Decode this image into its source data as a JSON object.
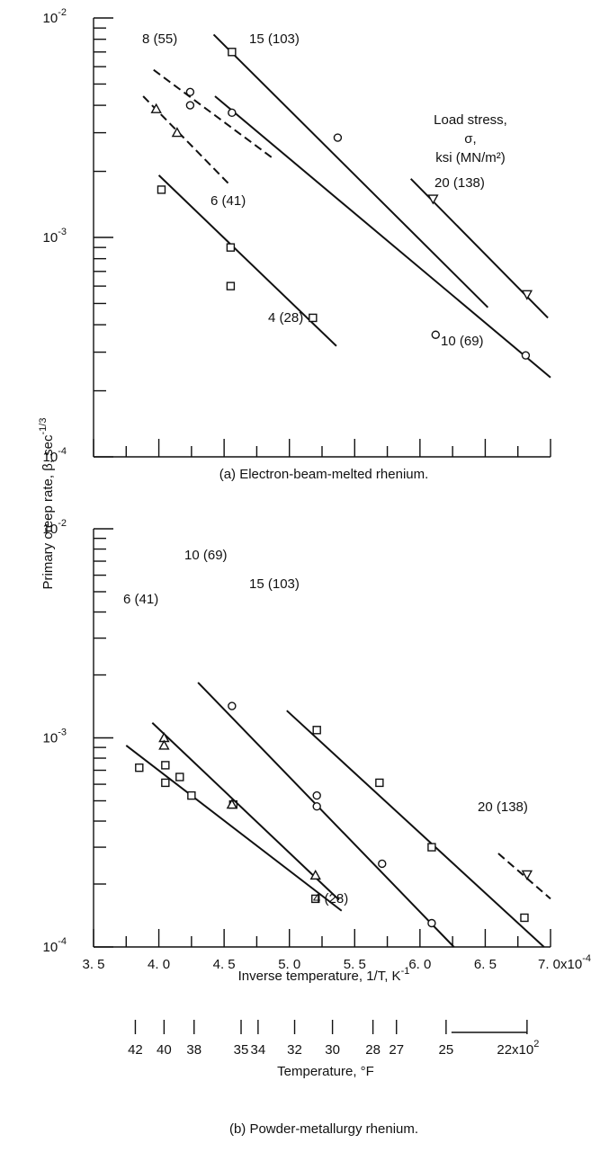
{
  "figure": {
    "ylabel_text": "Primary creep rate, β, sec",
    "ylabel_exp": "-1/3",
    "legend_title": [
      "Load stress,",
      "σ,",
      "ksi (MN/m²)"
    ],
    "caption_a": "(a) Electron-beam-melted rhenium.",
    "caption_b": "(b) Powder-metallurgy rhenium.",
    "xlabel": "Inverse temperature, 1/T, K",
    "xlabel_exp": "-1",
    "x_ticks": [
      "3. 5",
      "4. 0",
      "4. 5",
      "5. 0",
      "5. 5",
      "6. 0",
      "6. 5",
      "7. 0x10"
    ],
    "x_ticks_exp": "-4",
    "y_ticks": [
      {
        "v": 0.0001,
        "base": "10",
        "exp": "-4"
      },
      {
        "v": 0.001,
        "base": "10",
        "exp": "-3"
      },
      {
        "v": 0.01,
        "base": "10",
        "exp": "-2"
      }
    ],
    "temp_label": "Temperature, °F",
    "temp_ticks": [
      {
        "label": "42",
        "x": 3.82
      },
      {
        "label": "40",
        "x": 4.04
      },
      {
        "label": "38",
        "x": 4.27
      },
      {
        "label": "35",
        "x": 4.63
      },
      {
        "label": "34",
        "x": 4.76
      },
      {
        "label": "32",
        "x": 5.04
      },
      {
        "label": "30",
        "x": 5.33
      },
      {
        "label": "28",
        "x": 5.64
      },
      {
        "label": "27",
        "x": 5.82
      },
      {
        "label": "25",
        "x": 6.2
      },
      {
        "label": "22x10",
        "x": 6.82,
        "exp": "2"
      }
    ]
  },
  "chart_data": [
    {
      "type": "scatter",
      "title": "(a) Electron-beam-melted rhenium.",
      "xlabel": "Inverse temperature, 1/T, K-1",
      "ylabel": "Primary creep rate, β, sec-1/3",
      "xlim": [
        3.5,
        7.0
      ],
      "ylim": [
        0.0001,
        0.01
      ],
      "yscale": "log",
      "series": [
        {
          "name": "4 (28)",
          "marker": "square",
          "style": "solid",
          "points": [
            [
              4.02,
              0.00165
            ],
            [
              4.55,
              0.0009
            ],
            [
              4.55,
              0.0006
            ],
            [
              5.18,
              0.00043
            ]
          ],
          "fit": [
            [
              4.0,
              0.00192
            ],
            [
              5.36,
              0.00032
            ]
          ]
        },
        {
          "name": "6 (41)",
          "marker": "triangle",
          "style": "dashed",
          "points": [
            [
              3.98,
              0.00385
            ],
            [
              4.14,
              0.003
            ]
          ],
          "fit": [
            [
              3.88,
              0.0044
            ],
            [
              4.55,
              0.00172
            ]
          ]
        },
        {
          "name": "8 (55)",
          "marker": "circle",
          "style": "dashed",
          "points": [
            [
              4.24,
              0.0046
            ],
            [
              4.24,
              0.004
            ]
          ],
          "fit": [
            [
              3.96,
              0.0058
            ],
            [
              4.88,
              0.00228
            ]
          ]
        },
        {
          "name": "10 (69)",
          "marker": "circle",
          "style": "solid",
          "points": [
            [
              4.56,
              0.0037
            ],
            [
              5.37,
              0.00285
            ],
            [
              6.12,
              0.00036
            ],
            [
              6.81,
              0.00029
            ]
          ],
          "fit": [
            [
              4.43,
              0.0044
            ],
            [
              7.0,
              0.00023
            ]
          ]
        },
        {
          "name": "15 (103)",
          "marker": "square",
          "style": "solid",
          "points": [
            [
              4.56,
              0.007
            ]
          ],
          "fit": [
            [
              4.42,
              0.0084
            ],
            [
              6.52,
              0.00048
            ]
          ]
        },
        {
          "name": "20 (138)",
          "marker": "triangle-down",
          "style": "solid",
          "points": [
            [
              6.1,
              0.0015
            ],
            [
              6.82,
              0.00055
            ]
          ],
          "fit": [
            [
              5.93,
              0.00185
            ],
            [
              6.98,
              0.00043
            ]
          ]
        }
      ]
    },
    {
      "type": "scatter",
      "title": "(b) Powder-metallurgy rhenium.",
      "xlabel": "Inverse temperature, 1/T, K-1",
      "ylabel": "Primary creep rate, β, sec-1/3",
      "xlim": [
        3.5,
        7.0
      ],
      "ylim": [
        0.0001,
        0.01
      ],
      "yscale": "log",
      "series": [
        {
          "name": "4 (28)",
          "marker": "square",
          "style": "solid",
          "points": [
            [
              3.85,
              0.00072
            ],
            [
              4.05,
              0.00074
            ],
            [
              4.05,
              0.00061
            ],
            [
              4.16,
              0.00065
            ],
            [
              4.25,
              0.00053
            ],
            [
              4.57,
              0.00048
            ],
            [
              5.2,
              0.00017
            ]
          ],
          "fit": [
            [
              3.75,
              0.00092
            ],
            [
              5.4,
              0.000149
            ]
          ]
        },
        {
          "name": "6 (41)",
          "marker": "triangle",
          "style": "solid",
          "points": [
            [
              4.04,
              0.001
            ],
            [
              4.04,
              0.00092
            ],
            [
              4.56,
              0.00048
            ],
            [
              5.2,
              0.00022
            ]
          ],
          "fit": [
            [
              3.95,
              0.00118
            ],
            [
              5.38,
              0.000168
            ]
          ]
        },
        {
          "name": "10 (69)",
          "marker": "circle",
          "style": "solid",
          "points": [
            [
              4.56,
              0.00142
            ],
            [
              5.21,
              0.00053
            ],
            [
              5.21,
              0.00047
            ],
            [
              5.71,
              0.00025
            ],
            [
              6.09,
              0.00013
            ]
          ],
          "fit": [
            [
              4.3,
              0.00184
            ],
            [
              6.26,
              0.0001
            ]
          ]
        },
        {
          "name": "15 (103)",
          "marker": "square",
          "style": "solid",
          "points": [
            [
              5.21,
              0.00109
            ],
            [
              5.69,
              0.00061
            ],
            [
              6.09,
              0.0003
            ],
            [
              6.8,
              0.000138
            ]
          ],
          "fit": [
            [
              4.98,
              0.00135
            ],
            [
              6.95,
              0.0001
            ]
          ]
        },
        {
          "name": "20 (138)",
          "marker": "triangle-down",
          "style": "dashed",
          "points": [
            [
              6.82,
              0.000222
            ]
          ],
          "fit": [
            [
              6.6,
              0.00028
            ],
            [
              7.0,
              0.00017
            ]
          ]
        }
      ]
    }
  ]
}
